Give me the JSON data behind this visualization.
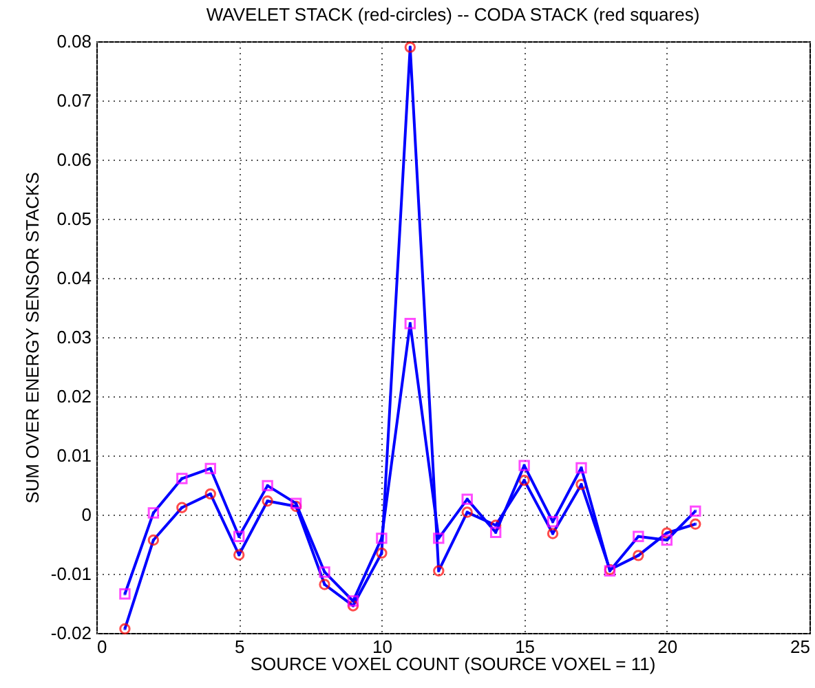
{
  "chart_data": {
    "type": "line",
    "title": "WAVELET STACK (red-circles) -- CODA STACK (red squares)",
    "xlabel": "SOURCE VOXEL COUNT (SOURCE VOXEL = 11)",
    "ylabel": "SUM OVER ENERGY SENSOR STACKS",
    "x": [
      1,
      2,
      3,
      4,
      5,
      6,
      7,
      8,
      9,
      10,
      11,
      12,
      13,
      14,
      15,
      16,
      17,
      18,
      19,
      20,
      21
    ],
    "series": [
      {
        "color": "#ff0000",
        "marker": "circle",
        "values": [
          -0.0193,
          -0.0043,
          0.0012,
          0.0035,
          -0.0068,
          0.0023,
          0.0014,
          -0.0118,
          -0.0154,
          -0.0065,
          0.079,
          -0.0095,
          0.0004,
          -0.0018,
          0.0058,
          -0.0032,
          0.0051,
          -0.0093,
          -0.0069,
          -0.0031,
          -0.0016
        ]
      },
      {
        "color": "#ff00ff",
        "marker": "square",
        "values": [
          -0.0134,
          0.0003,
          0.0061,
          0.0078,
          -0.0037,
          0.0049,
          0.0019,
          -0.0097,
          -0.0146,
          -0.004,
          0.0323,
          -0.004,
          0.0026,
          -0.003,
          0.0083,
          -0.0012,
          0.0079,
          -0.0095,
          -0.0037,
          -0.0043,
          0.0006
        ]
      }
    ],
    "xlim": [
      0,
      25
    ],
    "xticks": [
      0,
      5,
      10,
      15,
      20,
      25
    ],
    "ylim": [
      -0.02,
      0.08
    ],
    "yticks": [
      -0.02,
      -0.01,
      0,
      0.01,
      0.02,
      0.03,
      0.04,
      0.05,
      0.06,
      0.07,
      0.08
    ],
    "grid": true,
    "line_style": "solid"
  }
}
